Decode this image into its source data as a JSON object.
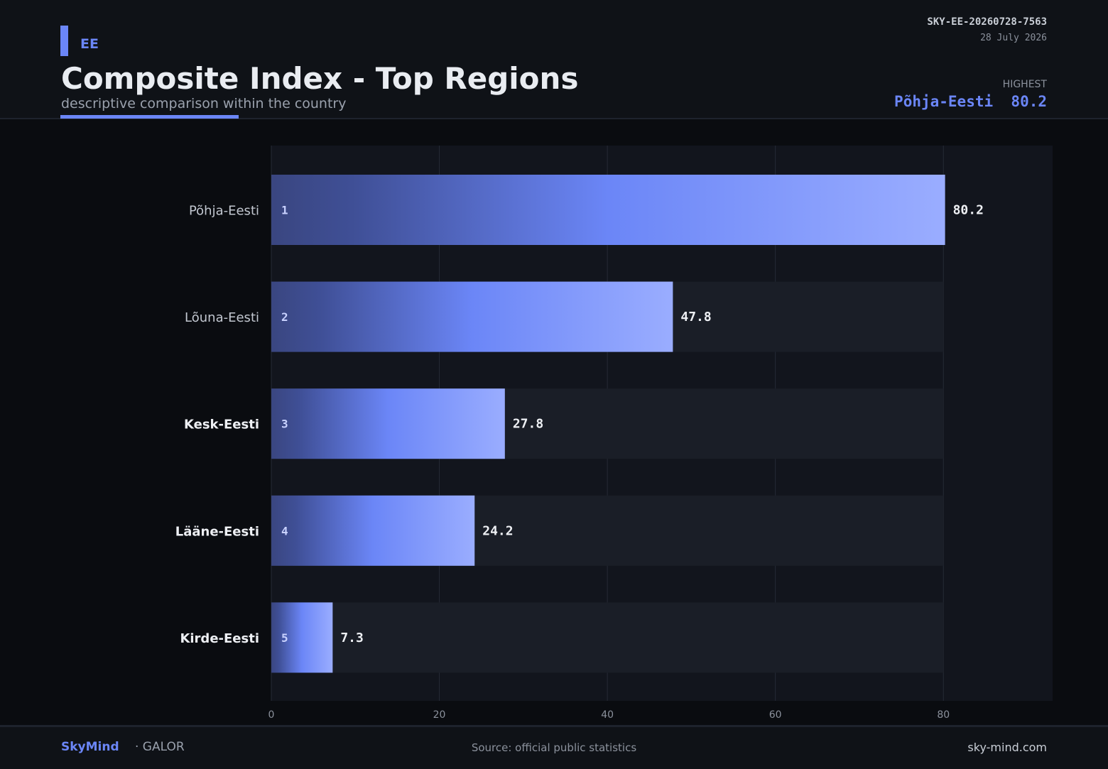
{
  "header": {
    "country_code": "EE",
    "title": "Composite Index - Top Regions",
    "subtitle": "descriptive comparison within the country",
    "report_id": "SKY-EE-20260728-7563",
    "report_date": "28 July 2026",
    "highest_label": "HIGHEST",
    "highest_region": "Põhja-Eesti",
    "highest_value": "80.2"
  },
  "footer": {
    "brand": "SkyMind",
    "brand_sub": "· GALOR",
    "source": "Source: official public statistics",
    "site": "sky-mind.com"
  },
  "colors": {
    "accent": "#6b86f7",
    "bar_dark": "#3a4680",
    "bar_light": "#9aadff",
    "plot_bg": "#12151d",
    "track_bg": "#1a1e27"
  },
  "chart_data": {
    "type": "bar",
    "orientation": "horizontal",
    "categories": [
      "Põhja-Eesti",
      "Lõuna-Eesti",
      "Kesk-Eesti",
      "Lääne-Eesti",
      "Kirde-Eesti"
    ],
    "ranks": [
      "1",
      "2",
      "3",
      "4",
      "5"
    ],
    "values": [
      80.2,
      47.8,
      27.8,
      24.2,
      7.3
    ],
    "value_labels": [
      "80.2",
      "47.8",
      "27.8",
      "24.2",
      "7.3"
    ],
    "xlim": [
      0,
      93
    ],
    "xticks": [
      0,
      20,
      40,
      60,
      80
    ],
    "xtick_labels": [
      "0",
      "20",
      "40",
      "60",
      "80"
    ],
    "grid": true
  }
}
